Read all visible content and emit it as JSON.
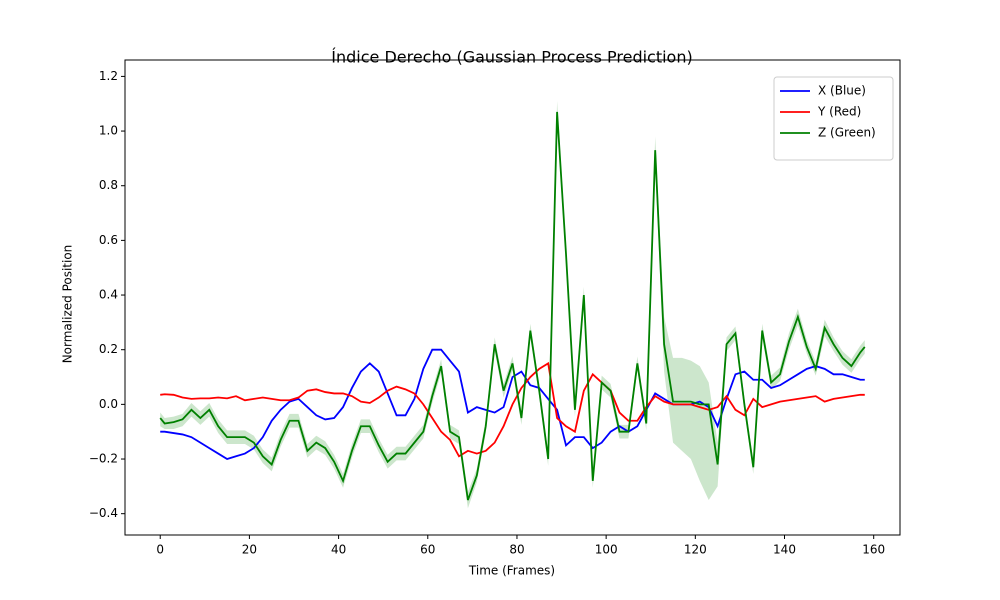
{
  "chart_data": {
    "type": "line",
    "title": "Índice Derecho (Gaussian Process Prediction)",
    "x_label": "Time (Frames)",
    "y_label": "Normalized Position",
    "x": [
      0,
      1,
      3,
      5,
      7,
      9,
      11,
      13,
      15,
      17,
      19,
      21,
      23,
      25,
      27,
      29,
      31,
      33,
      35,
      37,
      39,
      41,
      43,
      45,
      47,
      49,
      51,
      53,
      55,
      57,
      59,
      61,
      63,
      65,
      67,
      69,
      71,
      73,
      75,
      77,
      79,
      81,
      83,
      85,
      87,
      89,
      91,
      93,
      95,
      97,
      99,
      101,
      103,
      105,
      107,
      109,
      111,
      113,
      115,
      117,
      119,
      121,
      123,
      125,
      127,
      129,
      131,
      133,
      135,
      137,
      139,
      141,
      143,
      145,
      147,
      149,
      151,
      153,
      155,
      157,
      158
    ],
    "series": [
      {
        "name": "X (Blue)",
        "color": "#0000ff",
        "values": [
          -0.1,
          -0.1,
          -0.105,
          -0.11,
          -0.12,
          -0.14,
          -0.16,
          -0.18,
          -0.2,
          -0.19,
          -0.18,
          -0.16,
          -0.12,
          -0.06,
          -0.02,
          0.01,
          0.02,
          -0.01,
          -0.04,
          -0.055,
          -0.05,
          -0.01,
          0.06,
          0.12,
          0.15,
          0.12,
          0.04,
          -0.04,
          -0.04,
          0.02,
          0.13,
          0.2,
          0.2,
          0.16,
          0.12,
          -0.03,
          -0.01,
          -0.02,
          -0.03,
          -0.01,
          0.1,
          0.12,
          0.07,
          0.06,
          0.02,
          -0.02,
          -0.15,
          -0.12,
          -0.12,
          -0.16,
          -0.14,
          -0.1,
          -0.08,
          -0.1,
          -0.08,
          -0.02,
          0.04,
          0.02,
          0.0,
          0.0,
          0.0,
          0.01,
          -0.01,
          -0.08,
          0.02,
          0.11,
          0.12,
          0.09,
          0.09,
          0.06,
          0.07,
          0.09,
          0.11,
          0.13,
          0.14,
          0.13,
          0.11,
          0.11,
          0.1,
          0.09,
          0.09
        ]
      },
      {
        "name": "Y (Red)",
        "color": "#ff0000",
        "values": [
          0.035,
          0.037,
          0.035,
          0.025,
          0.02,
          0.022,
          0.022,
          0.025,
          0.022,
          0.03,
          0.015,
          0.02,
          0.025,
          0.02,
          0.015,
          0.015,
          0.025,
          0.05,
          0.055,
          0.045,
          0.04,
          0.04,
          0.03,
          0.01,
          0.005,
          0.025,
          0.05,
          0.065,
          0.055,
          0.04,
          0.0,
          -0.05,
          -0.1,
          -0.13,
          -0.19,
          -0.17,
          -0.18,
          -0.17,
          -0.14,
          -0.08,
          0.0,
          0.06,
          0.1,
          0.13,
          0.15,
          -0.05,
          -0.08,
          -0.1,
          0.05,
          0.11,
          0.08,
          0.05,
          -0.03,
          -0.06,
          -0.06,
          -0.01,
          0.03,
          0.01,
          0.0,
          0.0,
          0.0,
          -0.01,
          -0.02,
          -0.01,
          0.03,
          -0.02,
          -0.04,
          0.02,
          -0.01,
          0.0,
          0.01,
          0.015,
          0.02,
          0.025,
          0.03,
          0.01,
          0.02,
          0.025,
          0.03,
          0.035,
          0.035
        ]
      },
      {
        "name": "Z (Green)",
        "color": "#008000",
        "values": [
          -0.05,
          -0.07,
          -0.065,
          -0.055,
          -0.02,
          -0.05,
          -0.02,
          -0.08,
          -0.12,
          -0.12,
          -0.12,
          -0.14,
          -0.19,
          -0.22,
          -0.13,
          -0.06,
          -0.06,
          -0.17,
          -0.14,
          -0.16,
          -0.21,
          -0.28,
          -0.17,
          -0.08,
          -0.08,
          -0.15,
          -0.21,
          -0.18,
          -0.18,
          -0.14,
          -0.1,
          0.03,
          0.14,
          -0.1,
          -0.12,
          -0.35,
          -0.26,
          -0.08,
          0.22,
          0.05,
          0.15,
          -0.05,
          0.27,
          0.05,
          -0.2,
          1.07,
          0.55,
          -0.02,
          0.4,
          -0.28,
          0.08,
          0.05,
          -0.1,
          -0.1,
          0.15,
          -0.07,
          0.93,
          0.22,
          0.01,
          0.01,
          0.01,
          0.0,
          0.0,
          -0.22,
          0.22,
          0.26,
          0.0,
          -0.23,
          0.27,
          0.08,
          0.11,
          0.23,
          0.32,
          0.21,
          0.13,
          0.28,
          0.22,
          0.17,
          0.14,
          0.19,
          0.21
        ],
        "band": {
          "lower": [
            -0.08,
            -0.09,
            -0.09,
            -0.08,
            -0.045,
            -0.075,
            -0.045,
            -0.105,
            -0.145,
            -0.145,
            -0.145,
            -0.165,
            -0.215,
            -0.245,
            -0.155,
            -0.085,
            -0.085,
            -0.195,
            -0.165,
            -0.185,
            -0.235,
            -0.305,
            -0.195,
            -0.105,
            -0.105,
            -0.175,
            -0.235,
            -0.205,
            -0.205,
            -0.165,
            -0.125,
            0.005,
            0.115,
            -0.125,
            -0.145,
            -0.38,
            -0.285,
            -0.105,
            0.195,
            0.025,
            0.125,
            -0.075,
            0.245,
            0.025,
            -0.225,
            1.03,
            0.52,
            -0.045,
            0.37,
            -0.305,
            0.055,
            0.025,
            -0.125,
            -0.125,
            0.125,
            -0.095,
            0.88,
            0.12,
            -0.14,
            -0.17,
            -0.2,
            -0.28,
            -0.35,
            -0.3,
            0.195,
            0.235,
            -0.025,
            -0.255,
            0.245,
            0.055,
            0.085,
            0.2,
            0.29,
            0.185,
            0.105,
            0.25,
            0.195,
            0.145,
            0.115,
            0.165,
            0.185
          ],
          "upper": [
            -0.03,
            -0.05,
            -0.045,
            -0.035,
            0.005,
            -0.025,
            0.005,
            -0.055,
            -0.095,
            -0.095,
            -0.095,
            -0.115,
            -0.165,
            -0.195,
            -0.105,
            -0.035,
            -0.035,
            -0.145,
            -0.115,
            -0.135,
            -0.185,
            -0.255,
            -0.145,
            -0.055,
            -0.055,
            -0.125,
            -0.185,
            -0.155,
            -0.155,
            -0.115,
            -0.075,
            0.055,
            0.165,
            -0.075,
            -0.095,
            -0.32,
            -0.235,
            -0.055,
            0.245,
            0.075,
            0.175,
            -0.025,
            0.295,
            0.075,
            -0.175,
            1.11,
            0.58,
            0.005,
            0.43,
            -0.255,
            0.105,
            0.075,
            -0.075,
            -0.075,
            0.175,
            -0.045,
            0.98,
            0.32,
            0.17,
            0.17,
            0.16,
            0.14,
            0.08,
            -0.14,
            0.245,
            0.285,
            0.025,
            -0.205,
            0.295,
            0.105,
            0.135,
            0.26,
            0.35,
            0.235,
            0.155,
            0.31,
            0.245,
            0.195,
            0.165,
            0.215,
            0.235
          ]
        }
      }
    ],
    "xlim": [
      -7.9,
      165.9
    ],
    "ylim": [
      -0.478,
      1.26
    ],
    "xticks": [
      0,
      20,
      40,
      60,
      80,
      100,
      120,
      140,
      160
    ],
    "yticks": [
      {
        "value": -0.4,
        "label": "−0.4"
      },
      {
        "value": -0.2,
        "label": "−0.2"
      },
      {
        "value": 0,
        "label": "0.0"
      },
      0.2,
      0.4,
      0.6,
      0.8,
      {
        "value": 1,
        "label": "1.0"
      },
      1.2
    ],
    "grid": false,
    "legend": "upper right"
  }
}
